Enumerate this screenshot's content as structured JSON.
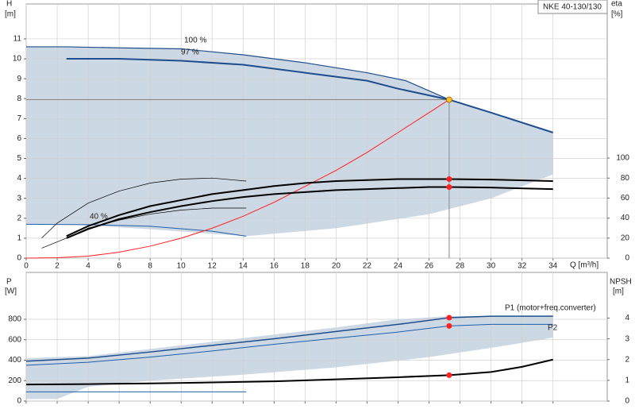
{
  "chart_data": [
    {
      "type": "line",
      "title": "NKE 40-130/130",
      "ylabel": "H",
      "yunit": "[m]",
      "y2label": "eta",
      "y2unit": "[%]",
      "xlabel": "Q [m³/h]",
      "xlim": [
        0,
        37.5
      ],
      "xticks": [
        0,
        2,
        4,
        6,
        8,
        10,
        12,
        14,
        16,
        18,
        20,
        22,
        24,
        26,
        28,
        30,
        32,
        34
      ],
      "ylim": [
        0,
        12.75
      ],
      "yticks": [
        0,
        1,
        2,
        3,
        4,
        5,
        6,
        7,
        8,
        9,
        10,
        11
      ],
      "y2lim": [
        0,
        254
      ],
      "y2ticks": [
        0,
        20,
        40,
        60,
        80,
        100
      ],
      "grid": true,
      "envelope": {
        "color": "#c8d4e2",
        "x": [
          0,
          2.6,
          6,
          10,
          14,
          18,
          22,
          24.5,
          27.3,
          30,
          34,
          34,
          30,
          26,
          20,
          14.2,
          8,
          2.6,
          1.4,
          0
        ],
        "y": [
          10.6,
          10.6,
          10.55,
          10.5,
          10.2,
          9.8,
          9.3,
          8.9,
          7.95,
          7.3,
          6.3,
          4.2,
          3.0,
          2.2,
          1.5,
          1.1,
          1.45,
          1.7,
          1.7,
          1.7
        ]
      },
      "series": [
        {
          "name": "100 %",
          "color": "#1f4e8c",
          "width": 1.2,
          "x": [
            0,
            2.6,
            6,
            10,
            14,
            18,
            22,
            24.5,
            27.3
          ],
          "values": [
            10.6,
            10.6,
            10.55,
            10.5,
            10.2,
            9.8,
            9.3,
            8.9,
            7.95
          ]
        },
        {
          "name": "97 %",
          "color": "#1f4e8c",
          "width": 2,
          "x": [
            2.6,
            6,
            10,
            14,
            18,
            22,
            24,
            27.3,
            30,
            34
          ],
          "values": [
            10,
            10,
            9.9,
            9.7,
            9.3,
            8.9,
            8.5,
            7.95,
            7.3,
            6.3
          ]
        },
        {
          "name": "40 %",
          "color": "#1f5fa8",
          "width": 1,
          "x": [
            0,
            4,
            8,
            12,
            14.2
          ],
          "values": [
            1.7,
            1.68,
            1.6,
            1.35,
            1.1
          ]
        },
        {
          "color": "#ff2020",
          "width": 1,
          "x": [
            0,
            2,
            4,
            6,
            8,
            10,
            12,
            14,
            16,
            18,
            20,
            22,
            24,
            26,
            27.3
          ],
          "values": [
            0,
            0.02,
            0.1,
            0.3,
            0.6,
            1.0,
            1.5,
            2.1,
            2.8,
            3.6,
            4.4,
            5.3,
            6.3,
            7.3,
            7.95
          ]
        },
        {
          "color": "#000000",
          "width": 2,
          "axis": "y2",
          "x": [
            2.6,
            4,
            6,
            8,
            10,
            12,
            14,
            16,
            18,
            20,
            22,
            24,
            26,
            27.3,
            30,
            34
          ],
          "values": [
            22,
            32,
            43,
            52,
            58,
            64,
            68,
            72,
            75,
            77,
            78,
            79,
            79,
            79,
            78.5,
            77
          ]
        },
        {
          "color": "#000000",
          "width": 2,
          "axis": "y2",
          "x": [
            2.6,
            4,
            6,
            8,
            10,
            12,
            14,
            16,
            18,
            20,
            22,
            24,
            26,
            27.3,
            30,
            34
          ],
          "values": [
            20,
            29,
            39,
            46,
            52,
            57,
            61,
            64,
            66,
            68,
            69,
            70,
            71,
            71,
            70.5,
            69
          ]
        },
        {
          "color": "#000000",
          "width": 0.7,
          "axis": "y2",
          "x": [
            1,
            2,
            4,
            6,
            8,
            10,
            12,
            14.2
          ],
          "values": [
            20,
            35,
            55,
            67,
            75,
            79,
            80,
            77
          ]
        },
        {
          "color": "#000000",
          "width": 0.7,
          "axis": "y2",
          "x": [
            1,
            2.6,
            4,
            6,
            8,
            10,
            12,
            14.2
          ],
          "values": [
            10,
            20,
            30,
            38,
            44,
            48,
            50,
            50
          ]
        }
      ],
      "points": [
        {
          "x": 27.3,
          "y": 7.95,
          "color": "#ffc020",
          "guide": true
        },
        {
          "x": 27.3,
          "y": 79,
          "axis": "y2",
          "color": "#ff2020"
        },
        {
          "x": 27.3,
          "y": 71,
          "axis": "y2",
          "color": "#ff2020"
        }
      ]
    },
    {
      "type": "line",
      "ylabel": "P",
      "yunit": "[W]",
      "y2label": "NPSH",
      "y2unit": "[m]",
      "xlim": [
        0,
        37.5
      ],
      "xticks": [
        0,
        2,
        4,
        6,
        8,
        10,
        12,
        14,
        16,
        18,
        20,
        22,
        24,
        26,
        28,
        30,
        32,
        34
      ],
      "ylim": [
        0,
        1258
      ],
      "yticks": [
        0,
        200,
        400,
        600,
        800
      ],
      "y2lim": [
        0,
        6.2
      ],
      "y2ticks": [
        0,
        1,
        2,
        3,
        4
      ],
      "grid": true,
      "envelope": {
        "color": "#c8d4e2",
        "x": [
          0,
          4,
          8,
          12,
          16,
          20,
          24,
          27.3,
          34,
          34,
          30,
          26,
          20,
          14.2,
          8,
          4,
          2,
          0
        ],
        "y": [
          420,
          440,
          510,
          580,
          650,
          720,
          800,
          830,
          830,
          620,
          520,
          430,
          330,
          260,
          200,
          140,
          20,
          20
        ]
      },
      "series": [
        {
          "name": "P1 (motor+freq.converter)",
          "color": "#1f4e8c",
          "width": 1.5,
          "x": [
            0,
            4,
            8,
            12,
            16,
            20,
            24,
            27.3,
            30,
            34
          ],
          "values": [
            390,
            420,
            480,
            545,
            610,
            680,
            750,
            815,
            830,
            830
          ]
        },
        {
          "name": "P2",
          "color": "#1f5fa8",
          "width": 1,
          "x": [
            0,
            4,
            8,
            12,
            16,
            20,
            24,
            27.3,
            30,
            34
          ],
          "values": [
            350,
            380,
            430,
            490,
            555,
            615,
            675,
            735,
            750,
            750
          ]
        },
        {
          "color": "#000000",
          "width": 2,
          "axis": "y2",
          "x": [
            0,
            4,
            8,
            12,
            16,
            20,
            24,
            27.3,
            30,
            32,
            34
          ],
          "values": [
            0.8,
            0.82,
            0.85,
            0.9,
            0.95,
            1.05,
            1.15,
            1.25,
            1.4,
            1.65,
            2.0
          ]
        },
        {
          "color": "#1f5fa8",
          "width": 1,
          "x": [
            0,
            14.2
          ],
          "values": [
            90,
            90
          ]
        }
      ],
      "points": [
        {
          "x": 27.3,
          "y": 815,
          "color": "#ff2020"
        },
        {
          "x": 27.3,
          "y": 735,
          "color": "#ff2020"
        },
        {
          "x": 27.3,
          "y": 1.25,
          "axis": "y2",
          "color": "#ff2020"
        }
      ]
    }
  ]
}
